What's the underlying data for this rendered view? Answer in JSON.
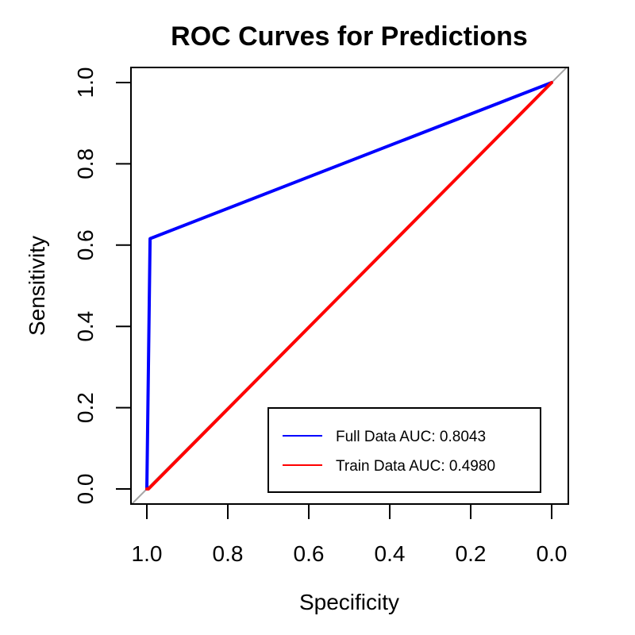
{
  "chart_data": {
    "type": "line",
    "title": "ROC Curves for Predictions",
    "xlabel": "Specificity",
    "ylabel": "Sensitivity",
    "xlim": [
      1.0,
      0.0
    ],
    "ylim": [
      0.0,
      1.0
    ],
    "x_reversed": true,
    "xticks": [
      "1.0",
      "0.8",
      "0.6",
      "0.4",
      "0.2",
      "0.0"
    ],
    "yticks": [
      "0.0",
      "0.2",
      "0.4",
      "0.6",
      "0.8",
      "1.0"
    ],
    "grid": false,
    "legend_position": "bottom-right",
    "reference_line": {
      "from": [
        1.0,
        0.0
      ],
      "to": [
        0.0,
        1.0
      ],
      "color": "#a6a6a6"
    },
    "series": [
      {
        "name": "Full Data AUC: 0.8043",
        "color": "#0000ff",
        "x": [
          1.0,
          0.992,
          0.0
        ],
        "y": [
          0.0,
          0.616,
          1.0
        ]
      },
      {
        "name": "Train Data AUC: 0.4980",
        "color": "#ff0000",
        "x": [
          1.0,
          0.996,
          0.0
        ],
        "y": [
          0.0,
          0.0,
          1.0
        ]
      }
    ]
  }
}
